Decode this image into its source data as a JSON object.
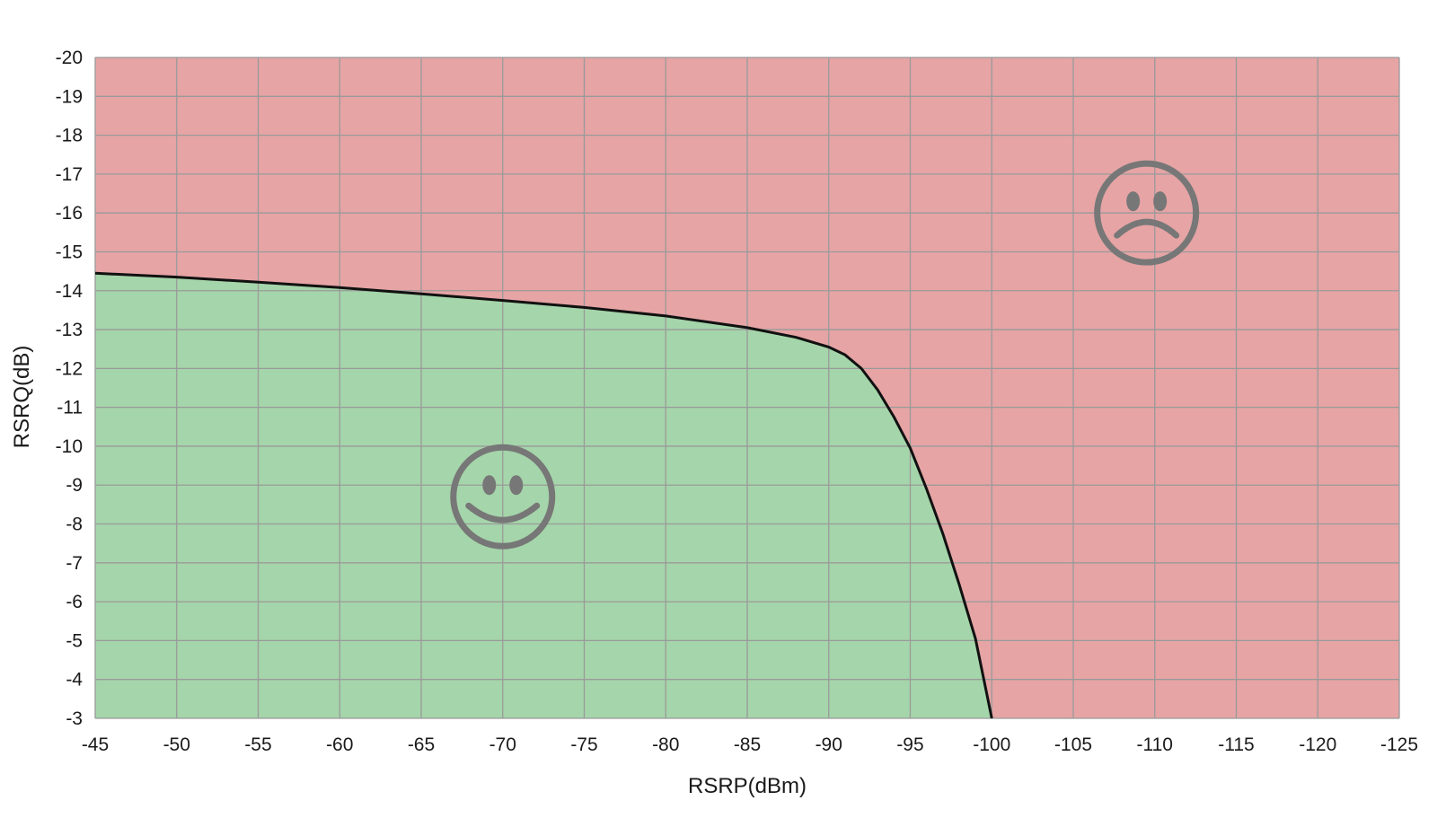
{
  "chart_data": {
    "type": "area",
    "title": "",
    "xlabel": "RSRP(dBm)",
    "ylabel": "RSRQ(dB)",
    "xlim": [
      -45,
      -125
    ],
    "ylim": [
      -3,
      -20
    ],
    "x_ticks": [
      "-45",
      "-50",
      "-55",
      "-60",
      "-65",
      "-70",
      "-75",
      "-80",
      "-85",
      "-90",
      "-95",
      "-100",
      "-105",
      "-110",
      "-115",
      "-120",
      "-125"
    ],
    "y_ticks": [
      "-3",
      "-4",
      "-5",
      "-6",
      "-7",
      "-8",
      "-9",
      "-10",
      "-11",
      "-12",
      "-13",
      "-14",
      "-15",
      "-16",
      "-17",
      "-18",
      "-19",
      "-20"
    ],
    "grid": true,
    "boundary": {
      "x": [
        -45,
        -50,
        -55,
        -60,
        -65,
        -70,
        -75,
        -80,
        -85,
        -88,
        -90,
        -91,
        -92,
        -93,
        -94,
        -95,
        -96,
        -97,
        -98,
        -99,
        -100
      ],
      "y": [
        -14.45,
        -14.35,
        -14.22,
        -14.08,
        -13.92,
        -13.75,
        -13.57,
        -13.35,
        -13.05,
        -12.8,
        -12.55,
        -12.35,
        -12.0,
        -11.45,
        -10.75,
        -9.95,
        -8.9,
        -7.75,
        -6.45,
        -5.05,
        -3.0
      ]
    },
    "regions": [
      {
        "label": "good",
        "side": "below boundary",
        "color": "#a5d5aa",
        "icon": "happy-face-icon",
        "center": {
          "x": -70,
          "y": -8.7
        }
      },
      {
        "label": "bad",
        "side": "above boundary",
        "color": "#e6a4a5",
        "icon": "sad-face-icon",
        "center": {
          "x": -109.5,
          "y": -16.0
        }
      }
    ],
    "colors": {
      "good_region": "#a5d5aa",
      "bad_region": "#e6a4a5",
      "boundary_line": "#111111",
      "grid": "#9a9a9a",
      "icon": "#777777"
    }
  }
}
